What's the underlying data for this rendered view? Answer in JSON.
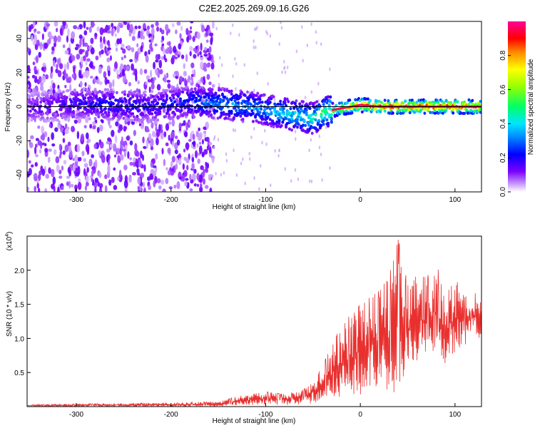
{
  "title": "C2E2.2025.269.09.16.G26",
  "chart_data": [
    {
      "type": "heatmap",
      "xlabel": "Height of straight line (km)",
      "ylabel": "Frequency (Hz)",
      "xlim": [
        -352,
        128
      ],
      "ylim": [
        -50,
        50
      ],
      "xticks": [
        -300,
        -200,
        -100,
        0,
        100
      ],
      "yticks": [
        -40,
        -20,
        0,
        20,
        40
      ],
      "colorbar": {
        "label": "Normalized spectral amplitude",
        "range": [
          0.0,
          1.0
        ],
        "ticks": [
          0.0,
          0.2,
          0.4,
          0.6,
          0.8
        ],
        "tick_labels": [
          "0.0",
          "0.2",
          "0.4",
          "0.6",
          "0.8"
        ],
        "colors": [
          "#ffffff",
          "#5500ff",
          "#0000ff",
          "#00e5ff",
          "#00ff55",
          "#aaff00",
          "#ffff00",
          "#ff8800",
          "#ff0000",
          "#ff0099"
        ]
      },
      "ridge": {
        "x": [
          -350,
          -300,
          -260,
          -220,
          -180,
          -150,
          -120,
          -100,
          -80,
          -60,
          -50,
          -40,
          -30,
          -20,
          -10,
          0,
          20,
          50,
          80,
          100,
          125
        ],
        "y": [
          -1,
          2,
          1,
          0,
          3,
          2,
          0,
          -2,
          -4,
          -6,
          -7,
          -4,
          -2,
          -1,
          0,
          1,
          0,
          0,
          0,
          0,
          0
        ],
        "peak_amplitude": [
          0.15,
          0.2,
          0.25,
          0.22,
          0.28,
          0.35,
          0.35,
          0.38,
          0.42,
          0.45,
          0.48,
          0.55,
          0.62,
          0.75,
          0.88,
          0.9,
          0.95,
          0.95,
          0.95,
          0.95,
          0.95
        ]
      },
      "reference_line_y": 0
    },
    {
      "type": "line",
      "xlabel": "Height of straight line (km)",
      "ylabel": "SNR (10 * v/v)",
      "y_multiplier_label": "(x10",
      "y_multiplier_exp": "4",
      "xlim": [
        -352,
        128
      ],
      "ylim": [
        0,
        2.5
      ],
      "xticks": [
        -300,
        -200,
        -100,
        0,
        100
      ],
      "yticks": [
        0.5,
        1.0,
        1.5,
        2.0
      ],
      "ytick_labels": [
        "0.5",
        "1.0",
        "1.5",
        "2.0"
      ],
      "line_color": "#e8302e",
      "envelope": {
        "x": [
          -352,
          -250,
          -150,
          -130,
          -100,
          -80,
          -60,
          -50,
          -40,
          -30,
          -20,
          -10,
          0,
          10,
          20,
          30,
          40,
          50,
          60,
          70,
          80,
          90,
          100,
          110,
          120,
          128
        ],
        "y": [
          0.03,
          0.05,
          0.07,
          0.15,
          0.22,
          0.18,
          0.25,
          0.4,
          0.6,
          0.9,
          1.2,
          1.35,
          1.5,
          1.6,
          1.7,
          1.9,
          2.45,
          1.8,
          2.0,
          1.9,
          2.1,
          1.7,
          1.9,
          1.6,
          1.7,
          1.5
        ]
      },
      "floor": {
        "x": [
          -352,
          -250,
          -150,
          -130,
          -100,
          -80,
          -60,
          -50,
          -40,
          -30,
          -20,
          -10,
          0,
          10,
          20,
          30,
          40,
          50,
          60,
          70,
          80,
          90,
          100,
          110,
          120,
          128
        ],
        "y": [
          0.0,
          0.0,
          0.0,
          0.02,
          0.03,
          0.02,
          0.03,
          0.05,
          0.08,
          0.1,
          0.15,
          0.2,
          0.1,
          0.2,
          0.3,
          0.1,
          0.3,
          0.4,
          0.6,
          0.7,
          0.8,
          0.6,
          0.8,
          0.9,
          1.0,
          1.0
        ]
      }
    }
  ]
}
